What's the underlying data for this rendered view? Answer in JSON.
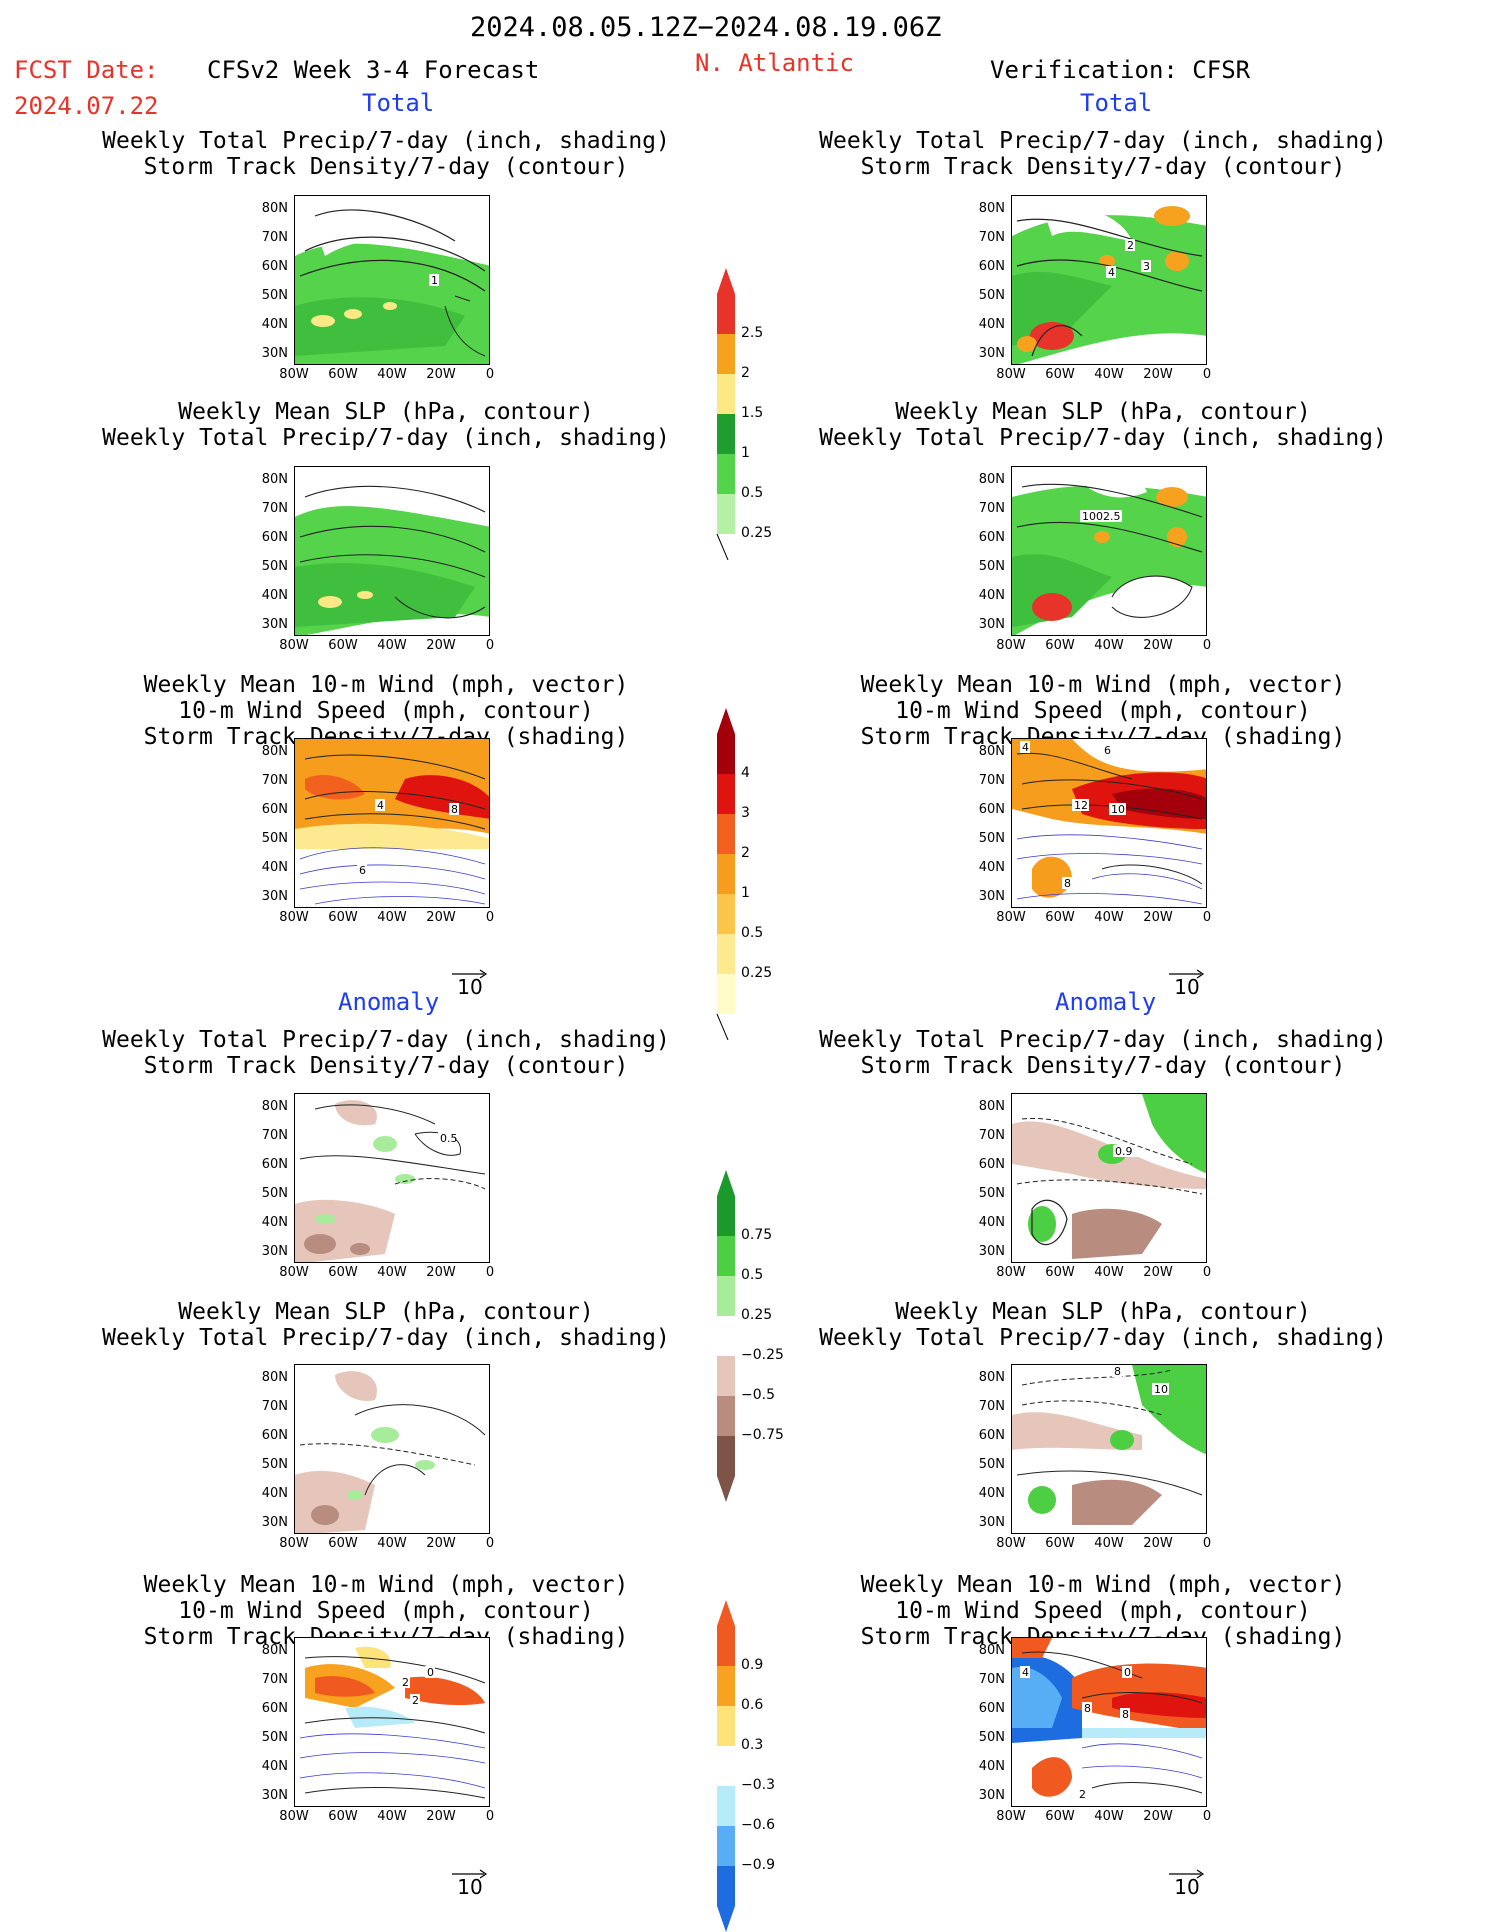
{
  "header": {
    "period": "2024.08.05.12Z−2024.08.19.06Z",
    "fcst_label": "FCST Date:",
    "fcst_date": "2024.07.22",
    "model": "CFSv2 Week 3-4 Forecast",
    "region": "N. Atlantic",
    "verification": "Verification: CFSR",
    "total_label": "Total",
    "anomaly_label": "Anomaly"
  },
  "titles": {
    "precip_storm": [
      "Weekly Total Precip/7-day (inch, shading)",
      "Storm Track Density/7-day (contour)"
    ],
    "slp_precip": [
      "Weekly Mean SLP (hPa, contour)",
      "Weekly Total Precip/7-day (inch, shading)"
    ],
    "wind": [
      "Weekly Mean 10-m Wind (mph, vector)",
      "10-m Wind Speed (mph, contour)",
      "Storm Track Density/7-day (shading)"
    ]
  },
  "axes": {
    "lat_ticks": [
      "80N",
      "70N",
      "60N",
      "50N",
      "40N",
      "30N"
    ],
    "lon_ticks": [
      "80W",
      "60W",
      "40W",
      "20W",
      "0"
    ],
    "vector_ref": "10"
  },
  "colorbars": {
    "precip_total": {
      "labels": [
        "2.5",
        "2",
        "1.5",
        "1",
        "0.5",
        "0.25"
      ],
      "colors": [
        "#e8332a",
        "#f6a21f",
        "#fde886",
        "#1f9e2f",
        "#54d34b",
        "#b6f0a6"
      ]
    },
    "storm_total": {
      "labels": [
        "4",
        "3",
        "2",
        "1",
        "0.5",
        "0.25"
      ],
      "colors": [
        "#a3000c",
        "#e0140f",
        "#f2601d",
        "#f79d1d",
        "#fbc54c",
        "#fde98f",
        "#fffcc8"
      ]
    },
    "precip_anom": {
      "labels": [
        "0.75",
        "0.5",
        "0.25",
        "−0.25",
        "−0.5",
        "−0.75"
      ],
      "colors": [
        "#1b9a2b",
        "#4ccf43",
        "#a6ec9a",
        "#ffffff",
        "#e6c6bb",
        "#b88c7e",
        "#7d5447"
      ]
    },
    "storm_anom": {
      "labels": [
        "0.9",
        "0.6",
        "0.3",
        "−0.3",
        "−0.6",
        "−0.9"
      ],
      "colors": [
        "#f05a20",
        "#f7a31f",
        "#fde37a",
        "#ffffff",
        "#b6ecfa",
        "#58aef5",
        "#1d6de0"
      ]
    }
  },
  "contour_labels": {
    "p1": "1",
    "p2a": "2",
    "p2b": "3",
    "p2c": "4",
    "s2": "1002.5",
    "w1a": "4",
    "w1b": "8",
    "w1c": "6",
    "w2a": "4",
    "w2b": "6",
    "w2c": "12",
    "w2d": "10",
    "w2e": "8",
    "a1": "0.5",
    "a2": "0.9",
    "b2a": "8",
    "b2b": "10",
    "c1a": "2",
    "c1b": "2",
    "c1c": "0",
    "c2a": "4",
    "c2b": "0",
    "c2c": "8",
    "c2d": "8",
    "c2e": "2"
  }
}
